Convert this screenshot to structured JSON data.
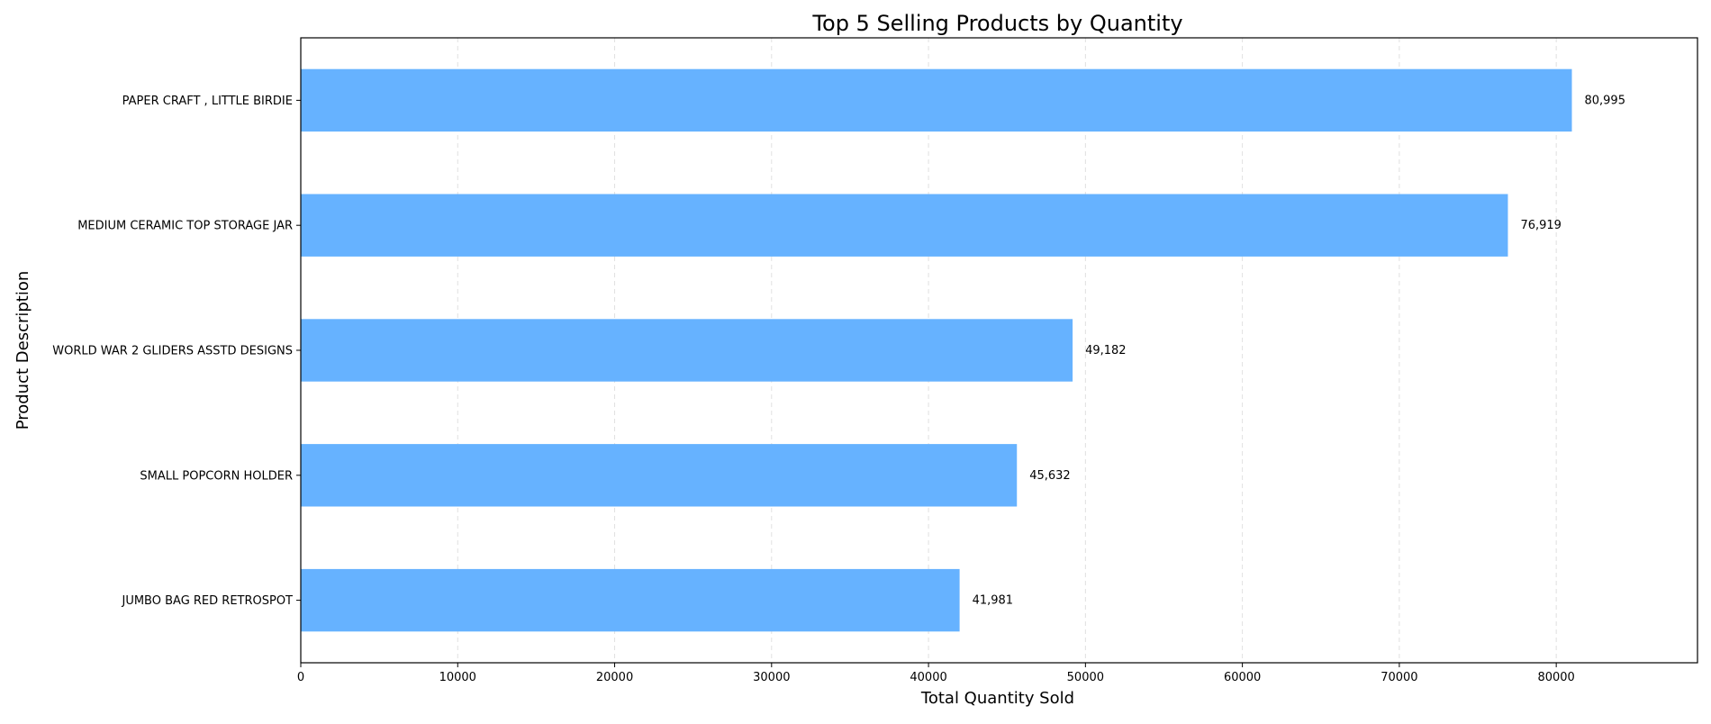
{
  "chart_data": {
    "type": "bar",
    "orientation": "horizontal",
    "title": "Top 5 Selling Products by Quantity",
    "xlabel": "Total Quantity Sold",
    "ylabel": "Product Description",
    "categories": [
      "PAPER CRAFT , LITTLE BIRDIE",
      "MEDIUM CERAMIC TOP STORAGE JAR",
      "WORLD WAR 2 GLIDERS ASSTD DESIGNS",
      "SMALL POPCORN HOLDER",
      "JUMBO BAG RED RETROSPOT"
    ],
    "values": [
      80995,
      76919,
      49182,
      45632,
      41981
    ],
    "value_labels": [
      "80,995",
      "76,919",
      "49,182",
      "45,632",
      "41,981"
    ],
    "xlim": [
      0,
      89000
    ],
    "xticks": [
      0,
      10000,
      20000,
      30000,
      40000,
      50000,
      60000,
      70000,
      80000
    ],
    "xtick_labels": [
      "0",
      "10000",
      "20000",
      "30000",
      "40000",
      "50000",
      "60000",
      "70000",
      "80000"
    ],
    "grid": "x-dashed",
    "bar_color": "#66b2ff",
    "grid_color": "#e0e0e0",
    "axis_color": "#000000"
  }
}
